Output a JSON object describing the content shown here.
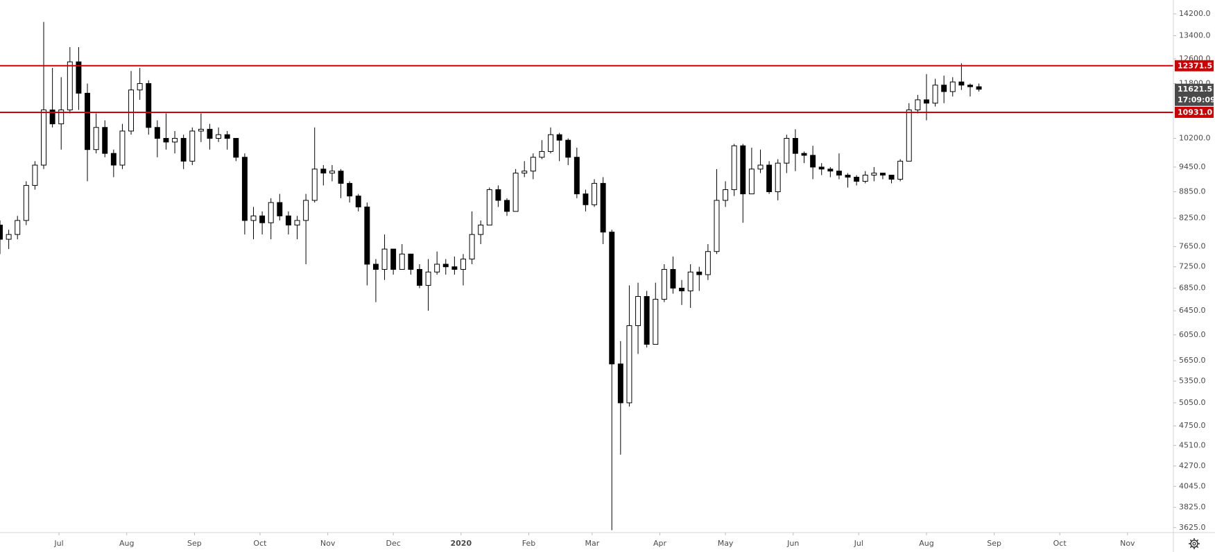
{
  "chart_data": {
    "type": "candlestick",
    "log_scale": true,
    "grid": false,
    "up_color": "#ffffff",
    "down_color": "#000000",
    "outline_color": "#000000",
    "xlim": [
      0,
      537
    ],
    "ylim": [
      3577,
      14733
    ],
    "xticks": [
      {
        "value": 27,
        "label": "Jul"
      },
      {
        "value": 58,
        "label": "Aug"
      },
      {
        "value": 89,
        "label": "Sep"
      },
      {
        "value": 119,
        "label": "Oct"
      },
      {
        "value": 150,
        "label": "Nov"
      },
      {
        "value": 180,
        "label": "Dec"
      },
      {
        "value": 211,
        "label": "2020"
      },
      {
        "value": 242,
        "label": "Feb"
      },
      {
        "value": 271,
        "label": "Mar"
      },
      {
        "value": 302,
        "label": "Apr"
      },
      {
        "value": 332,
        "label": "May"
      },
      {
        "value": 363,
        "label": "Jun"
      },
      {
        "value": 393,
        "label": "Jul"
      },
      {
        "value": 424,
        "label": "Aug"
      },
      {
        "value": 455,
        "label": "Sep"
      },
      {
        "value": 485,
        "label": "Oct"
      },
      {
        "value": 516,
        "label": "Nov"
      }
    ],
    "yticks": [
      {
        "value": 14200,
        "label": "14200.0"
      },
      {
        "value": 13400,
        "label": "13400.0"
      },
      {
        "value": 12600,
        "label": "12600.0"
      },
      {
        "value": 11800,
        "label": "11800.0"
      },
      {
        "value": 10200,
        "label": "10200.0"
      },
      {
        "value": 9450,
        "label": "9450.0"
      },
      {
        "value": 8850,
        "label": "8850.0"
      },
      {
        "value": 8250,
        "label": "8250.0"
      },
      {
        "value": 7650,
        "label": "7650.0"
      },
      {
        "value": 7250,
        "label": "7250.0"
      },
      {
        "value": 6850,
        "label": "6850.0"
      },
      {
        "value": 6450,
        "label": "6450.0"
      },
      {
        "value": 6050,
        "label": "6050.0"
      },
      {
        "value": 5650,
        "label": "5650.0"
      },
      {
        "value": 5350,
        "label": "5350.0"
      },
      {
        "value": 5050,
        "label": "5050.0"
      },
      {
        "value": 4750,
        "label": "4750.0"
      },
      {
        "value": 4510,
        "label": "4510.0"
      },
      {
        "value": 4270,
        "label": "4270.0"
      },
      {
        "value": 4045,
        "label": "4045.0"
      },
      {
        "value": 3825,
        "label": "3825.0"
      },
      {
        "value": 3625,
        "label": "3625.0"
      }
    ],
    "hlines": [
      {
        "value": 12371.5,
        "color": "#cc0000"
      },
      {
        "value": 10931,
        "label": "10931.0",
        "color": "#cc0000"
      }
    ],
    "last_price": {
      "value": 11621.5,
      "countdown": "17:09:09",
      "color": "#4a4a4a"
    },
    "x": [
      0,
      4,
      8,
      12,
      16,
      20,
      24,
      28,
      32,
      36,
      40,
      44,
      48,
      52,
      56,
      60,
      64,
      68,
      72,
      76,
      80,
      84,
      88,
      92,
      96,
      100,
      104,
      108,
      112,
      116,
      120,
      124,
      128,
      132,
      136,
      140,
      144,
      148,
      152,
      156,
      160,
      164,
      168,
      172,
      176,
      180,
      184,
      188,
      192,
      196,
      200,
      204,
      208,
      212,
      216,
      220,
      224,
      228,
      232,
      236,
      240,
      244,
      248,
      252,
      256,
      260,
      264,
      268,
      272,
      276,
      280,
      284,
      288,
      292,
      296,
      300,
      304,
      308,
      312,
      316,
      320,
      324,
      328,
      332,
      336,
      340,
      344,
      348,
      352,
      356,
      360,
      364,
      368,
      372,
      376,
      380,
      384,
      388,
      392,
      396,
      400,
      404,
      408,
      412,
      416,
      420,
      424,
      428,
      432,
      436,
      440,
      444,
      448
    ],
    "open": [
      8100,
      7800,
      7900,
      8200,
      9000,
      9500,
      11000,
      10600,
      11000,
      12500,
      11500,
      9900,
      10500,
      9800,
      9500,
      10400,
      11600,
      11800,
      10500,
      10200,
      10100,
      10200,
      9600,
      10400,
      10450,
      10200,
      10300,
      10200,
      9700,
      8200,
      8300,
      8150,
      8600,
      8300,
      8100,
      8200,
      8650,
      9400,
      9300,
      9350,
      9050,
      8750,
      8500,
      7300,
      7200,
      7600,
      7200,
      7500,
      7200,
      6900,
      7150,
      7300,
      7250,
      7200,
      7400,
      7900,
      8100,
      8900,
      8650,
      8400,
      9300,
      9350,
      9700,
      9850,
      10300,
      10150,
      9700,
      8800,
      8550,
      9050,
      7950,
      5600,
      5050,
      6200,
      6700,
      5900,
      6650,
      7200,
      6850,
      6800,
      7150,
      7100,
      7550,
      8650,
      8900,
      10000,
      8800,
      9400,
      9500,
      8850,
      9550,
      10200,
      9800,
      9750,
      9450,
      9400,
      9350,
      9250,
      9200,
      9100,
      9250,
      9300,
      9250,
      9150,
      9600,
      11000,
      11300,
      11200,
      11750,
      11550,
      11850,
      11750,
      11700
    ],
    "high": [
      8200,
      8000,
      8300,
      9100,
      9600,
      13900,
      12300,
      12000,
      13000,
      13000,
      11800,
      10900,
      10700,
      9900,
      10600,
      12200,
      12300,
      11900,
      10700,
      10900,
      10400,
      10300,
      10500,
      10900,
      10600,
      10500,
      10400,
      10200,
      9800,
      8500,
      8400,
      8700,
      8800,
      8400,
      8300,
      8800,
      10500,
      9500,
      9500,
      9400,
      9100,
      8800,
      8600,
      7400,
      7900,
      7600,
      7700,
      7500,
      7300,
      7400,
      7550,
      7400,
      7450,
      7500,
      8400,
      8200,
      8950,
      9000,
      8700,
      9400,
      9600,
      9800,
      10150,
      10500,
      10350,
      10200,
      9950,
      8900,
      9150,
      9200,
      8000,
      5950,
      6900,
      6950,
      6800,
      6950,
      7300,
      7450,
      7000,
      7300,
      7250,
      7700,
      9400,
      9100,
      10050,
      10050,
      9950,
      9900,
      9600,
      9650,
      10300,
      10450,
      9850,
      10000,
      9550,
      9450,
      9800,
      9300,
      9250,
      9350,
      9450,
      9300,
      9250,
      9650,
      11200,
      11450,
      12100,
      11950,
      12050,
      12000,
      12450,
      11800,
      11800
    ],
    "low": [
      7500,
      7600,
      7800,
      8100,
      8900,
      9400,
      10500,
      9900,
      10900,
      11000,
      9100,
      9800,
      9700,
      9200,
      9400,
      10300,
      11300,
      10300,
      9700,
      9900,
      9800,
      9400,
      9500,
      10100,
      9900,
      10100,
      9900,
      9600,
      7900,
      7800,
      7900,
      7800,
      8200,
      7900,
      7800,
      7300,
      8600,
      9000,
      9100,
      8700,
      8600,
      8400,
      6900,
      6600,
      7000,
      7100,
      7200,
      7100,
      6850,
      6450,
      7100,
      7100,
      7100,
      6900,
      7300,
      7700,
      8100,
      8500,
      8300,
      8400,
      9200,
      9150,
      9650,
      9800,
      9600,
      9500,
      8700,
      8400,
      8500,
      7700,
      3600,
      4400,
      5000,
      5750,
      5850,
      5900,
      6600,
      6750,
      6550,
      6500,
      6800,
      7000,
      7500,
      8500,
      8750,
      8150,
      8800,
      9300,
      8800,
      8650,
      9300,
      9350,
      9550,
      9150,
      9250,
      9200,
      9150,
      8950,
      9000,
      9050,
      9100,
      9150,
      9050,
      9100,
      9600,
      10900,
      10700,
      11100,
      11200,
      11400,
      11600,
      11400,
      11550
    ],
    "close": [
      7800,
      7900,
      8200,
      9000,
      9500,
      11000,
      10600,
      11000,
      12500,
      11500,
      9900,
      10500,
      9800,
      9500,
      10400,
      11600,
      11800,
      10500,
      10200,
      10100,
      10200,
      9600,
      10400,
      10450,
      10200,
      10300,
      10200,
      9700,
      8200,
      8300,
      8150,
      8600,
      8300,
      8100,
      8200,
      8650,
      9400,
      9300,
      9350,
      9050,
      8750,
      8500,
      7300,
      7200,
      7600,
      7200,
      7500,
      7200,
      6900,
      7150,
      7300,
      7250,
      7200,
      7400,
      7900,
      8100,
      8900,
      8650,
      8400,
      9300,
      9350,
      9700,
      9850,
      10300,
      10150,
      9700,
      8800,
      8550,
      9050,
      7950,
      5600,
      5050,
      6200,
      6700,
      5900,
      6650,
      7200,
      6850,
      6800,
      7150,
      7100,
      7550,
      8650,
      8900,
      10000,
      8800,
      9400,
      9500,
      8850,
      9550,
      10200,
      9800,
      9750,
      9450,
      9400,
      9350,
      9250,
      9200,
      9100,
      9250,
      9300,
      9250,
      9150,
      9600,
      11000,
      11300,
      11200,
      11750,
      11550,
      11850,
      11750,
      11700,
      11621.5
    ]
  }
}
